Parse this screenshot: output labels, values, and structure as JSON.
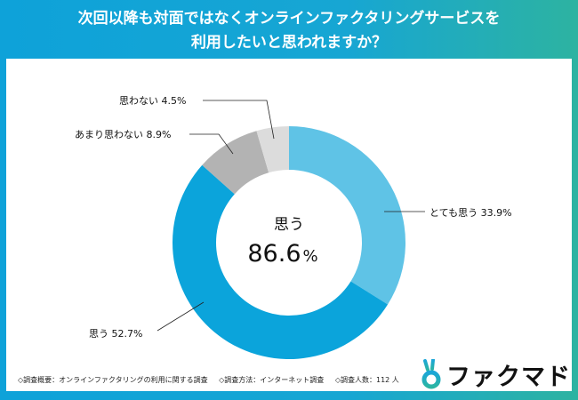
{
  "title_line1": "次回以降も対面ではなくオンラインファクタリングサービスを",
  "title_line2": "利用したいと思われますか？",
  "chart_data": {
    "type": "pie",
    "subtype": "donut",
    "title": "次回以降も対面ではなくオンラインファクタリングサービスを利用したいと思われますか？",
    "center_label": "思う",
    "center_value": "86.6",
    "center_unit": "%",
    "slices": [
      {
        "label": "とても思う",
        "value": 33.9,
        "text": "とても思う 33.9%",
        "color": "#5fc3e6"
      },
      {
        "label": "思う",
        "value": 52.7,
        "text": "思う 52.7%",
        "color": "#0ba4db"
      },
      {
        "label": "あまり思わない",
        "value": 8.9,
        "text": "あまり思わない 8.9%",
        "color": "#b3b3b3"
      },
      {
        "label": "思わない",
        "value": 4.5,
        "text": "思わない 4.5%",
        "color": "#dcdcdc"
      }
    ]
  },
  "footer": {
    "overview": "◇調査概要：オンラインファクタリングの利用に関する調査",
    "method": "◇調査方法：インターネット調査",
    "count": "◇調査人数：112 人"
  },
  "logo": {
    "text": "ファクマド",
    "color": "#2bb5b0"
  }
}
